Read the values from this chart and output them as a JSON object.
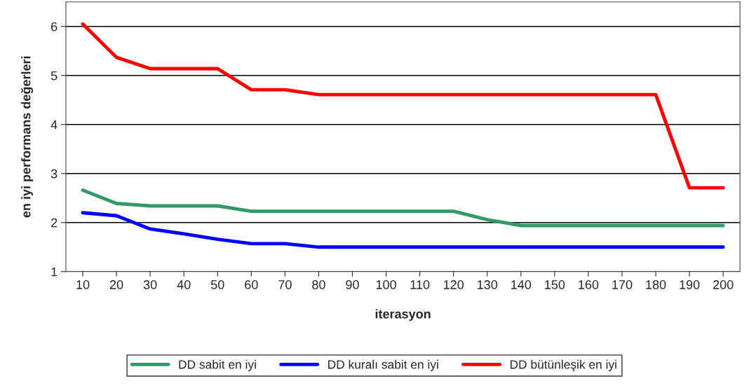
{
  "chart_data": {
    "type": "line",
    "xlabel": "iterasyon",
    "ylabel": "en iyi performans değerleri",
    "categories": [
      "10",
      "20",
      "30",
      "40",
      "50",
      "60",
      "70",
      "80",
      "90",
      "100",
      "110",
      "120",
      "130",
      "140",
      "150",
      "160",
      "170",
      "180",
      "190",
      "200"
    ],
    "series": [
      {
        "name": "DD sabit en iyi",
        "color": "#339966",
        "values": [
          2.66,
          2.39,
          2.34,
          2.34,
          2.34,
          2.23,
          2.23,
          2.23,
          2.23,
          2.23,
          2.23,
          2.23,
          2.06,
          1.94,
          1.94,
          1.94,
          1.94,
          1.94,
          1.94,
          1.94
        ]
      },
      {
        "name": "DD kuralı sabit en iyi",
        "color": "#0000ff",
        "values": [
          2.2,
          2.14,
          1.87,
          1.77,
          1.66,
          1.57,
          1.57,
          1.5,
          1.5,
          1.5,
          1.5,
          1.5,
          1.5,
          1.5,
          1.5,
          1.5,
          1.5,
          1.5,
          1.5,
          1.5
        ]
      },
      {
        "name": "DD bütünleşik en iyi",
        "color": "#ff0000",
        "values": [
          6.05,
          5.37,
          5.14,
          5.14,
          5.14,
          4.71,
          4.71,
          4.61,
          4.61,
          4.61,
          4.61,
          4.61,
          4.61,
          4.61,
          4.61,
          4.61,
          4.61,
          4.61,
          2.71,
          2.71
        ]
      }
    ],
    "ylim": [
      1,
      6.5
    ],
    "yticks": [
      1,
      2,
      3,
      4,
      5,
      6
    ],
    "grid": "y",
    "legend": "bottom",
    "marker": "none",
    "line_style": "solid"
  }
}
